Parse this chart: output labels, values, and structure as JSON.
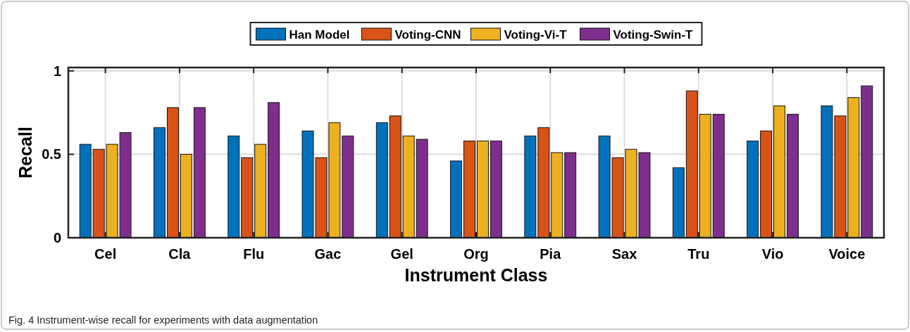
{
  "chart_data": {
    "type": "bar",
    "xlabel": "Instrument Class",
    "ylabel": "Recall",
    "categories": [
      "Cel",
      "Cla",
      "Flu",
      "Gac",
      "Gel",
      "Org",
      "Pia",
      "Sax",
      "Tru",
      "Vio",
      "Voice"
    ],
    "series": [
      {
        "name": "Han Model",
        "color": "#0072bd",
        "values": [
          0.56,
          0.66,
          0.61,
          0.64,
          0.69,
          0.46,
          0.61,
          0.61,
          0.42,
          0.58,
          0.79
        ]
      },
      {
        "name": "Voting-CNN",
        "color": "#d95319",
        "values": [
          0.53,
          0.78,
          0.48,
          0.48,
          0.73,
          0.58,
          0.66,
          0.48,
          0.88,
          0.64,
          0.73
        ]
      },
      {
        "name": "Voting-Vi-T",
        "color": "#edb120",
        "values": [
          0.56,
          0.5,
          0.56,
          0.69,
          0.61,
          0.58,
          0.51,
          0.53,
          0.74,
          0.79,
          0.84
        ]
      },
      {
        "name": "Voting-Swin-T",
        "color": "#7e2f8e",
        "values": [
          0.63,
          0.78,
          0.81,
          0.61,
          0.59,
          0.58,
          0.51,
          0.51,
          0.74,
          0.74,
          0.91
        ]
      }
    ],
    "ylim": [
      0,
      1.02
    ],
    "yticks": [
      0,
      0.5,
      1
    ],
    "grid": true,
    "legend": "top",
    "annotations": [
      "Fig. 4 Instrument-wise recall for experiments with data augmentation"
    ]
  }
}
